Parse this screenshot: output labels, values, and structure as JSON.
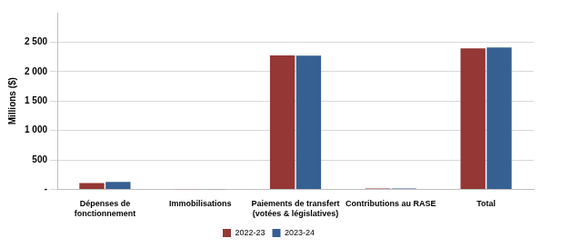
{
  "chart_data": {
    "type": "bar",
    "y_label": "Millions ($)",
    "categories": [
      "Dépenses de fonctionnement",
      "Immobilisations",
      "Paiements de transfert (votées & législatives)",
      "Contributions au RASE",
      "Total"
    ],
    "series": [
      {
        "name": "2022-23",
        "color": "#953735",
        "values": [
          105,
          3,
          2275,
          12,
          2395
        ]
      },
      {
        "name": "2023-24",
        "color": "#376092",
        "values": [
          125,
          3,
          2270,
          12,
          2410
        ]
      }
    ],
    "ylim": [
      0,
      3000
    ],
    "yticks": [
      {
        "value": 0,
        "label": "-"
      },
      500,
      {
        "value": 1000,
        "label": "1 000"
      },
      {
        "value": 1500,
        "label": "1 500"
      },
      {
        "value": 2000,
        "label": "2 000"
      },
      {
        "value": 2500,
        "label": "2 500"
      }
    ],
    "grid": true,
    "legend": "bottom"
  }
}
